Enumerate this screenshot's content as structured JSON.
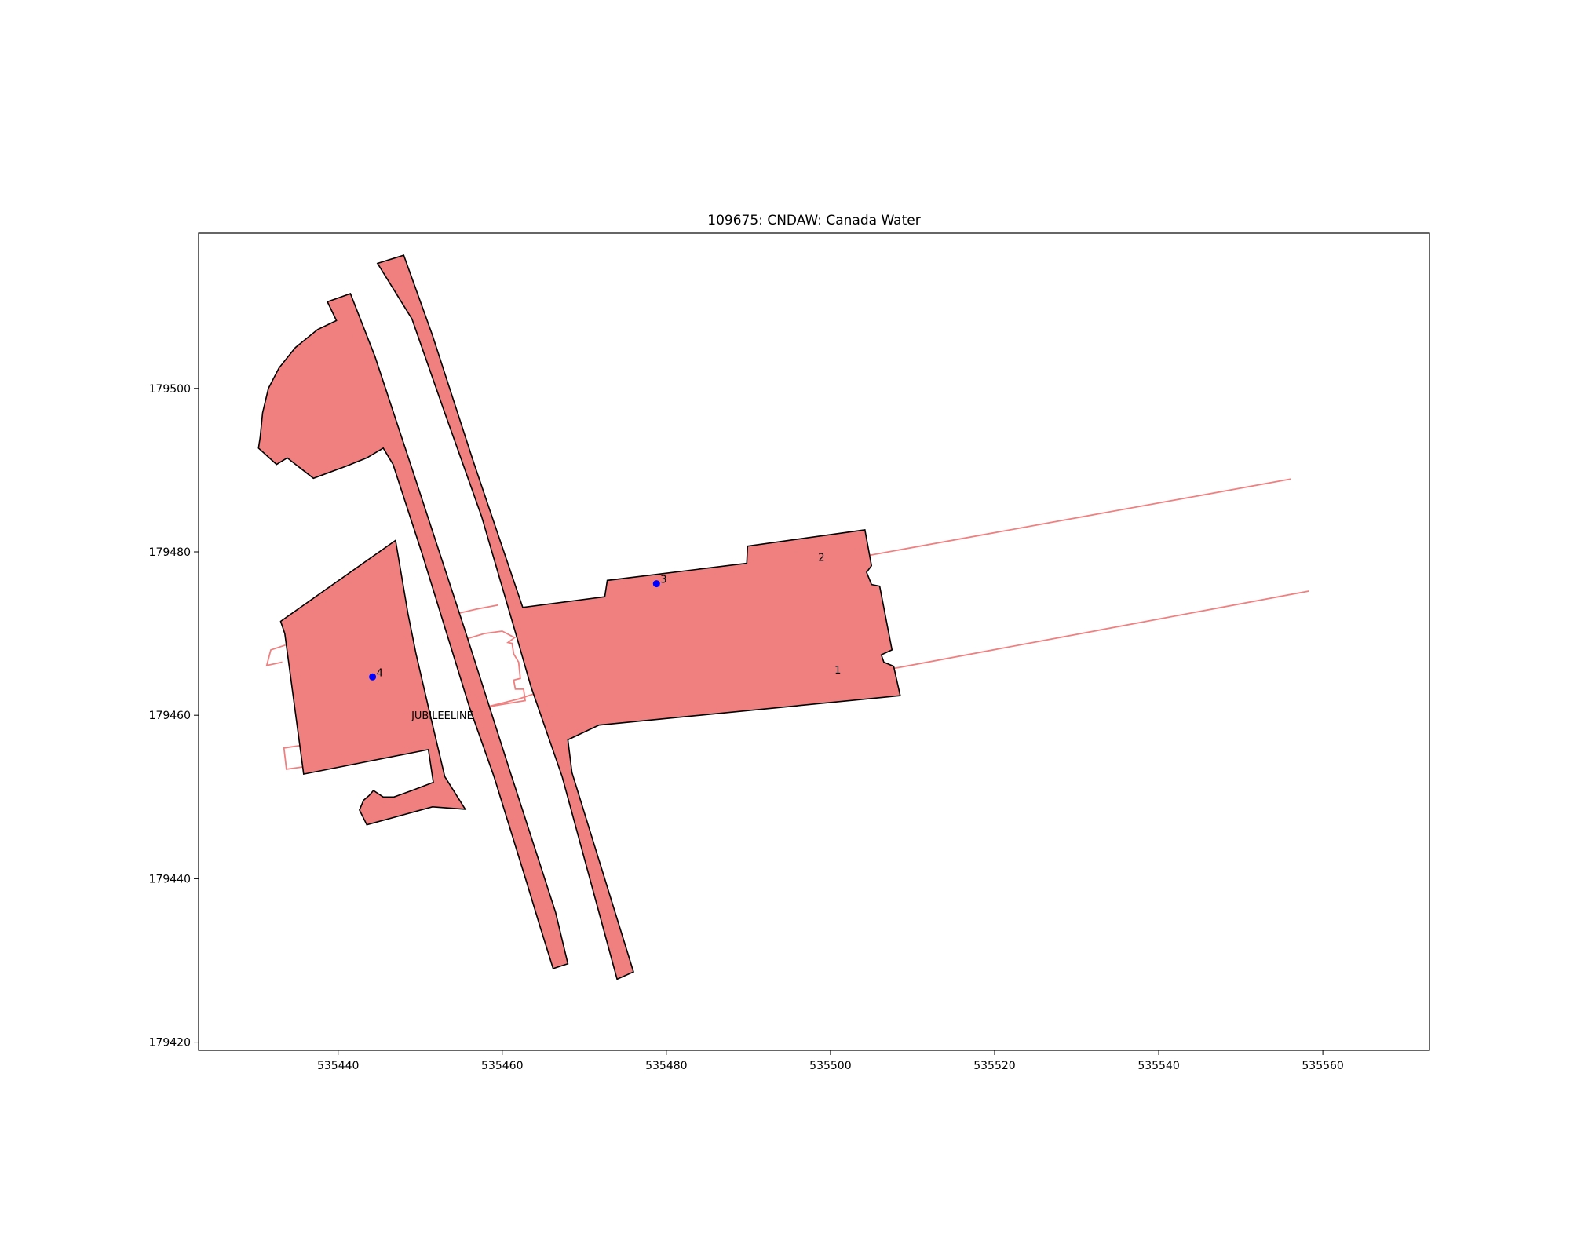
{
  "chart_data": {
    "type": "map",
    "title": "109675: CNDAW: Canada Water",
    "xlim": [
      535423,
      535573
    ],
    "ylim": [
      179419,
      179519
    ],
    "xticks": [
      535440,
      535460,
      535480,
      535500,
      535520,
      535540,
      535560
    ],
    "xtick_labels": [
      "535440",
      "535460",
      "535480",
      "535500",
      "535520",
      "535540",
      "535560"
    ],
    "yticks": [
      179420,
      179440,
      179460,
      179480,
      179500
    ],
    "ytick_labels": [
      "179420",
      "179440",
      "179460",
      "179480",
      "179500"
    ],
    "grid": false,
    "colors": {
      "fill": "#f08080",
      "edge": "#000000",
      "outline": "#f08080",
      "point": "#0000ff"
    },
    "filled_polygons": [
      {
        "id": "west-platform-block",
        "points": [
          [
            535438.7,
            179510.6
          ],
          [
            535441.5,
            179511.6
          ],
          [
            535444.5,
            179503.9
          ],
          [
            535449.1,
            179489.9
          ],
          [
            535455.5,
            179470.3
          ],
          [
            535461.0,
            179453.0
          ],
          [
            535466.5,
            179435.9
          ],
          [
            535468.0,
            179429.6
          ],
          [
            535466.2,
            179429.0
          ],
          [
            535464.5,
            179434.5
          ],
          [
            535463.0,
            179439.5
          ],
          [
            535461.0,
            179446.0
          ],
          [
            535459.0,
            179452.5
          ],
          [
            535456.0,
            179461.0
          ],
          [
            535450.2,
            179479.9
          ],
          [
            535446.7,
            179490.7
          ],
          [
            535445.5,
            179492.7
          ],
          [
            535443.5,
            179491.5
          ],
          [
            535441.0,
            179490.5
          ],
          [
            535437.0,
            179489.0
          ],
          [
            535433.8,
            179491.5
          ],
          [
            535432.5,
            179490.7
          ],
          [
            535430.3,
            179492.7
          ],
          [
            535430.5,
            179494.0
          ],
          [
            535430.8,
            179497.0
          ],
          [
            535431.5,
            179500.0
          ],
          [
            535432.8,
            179502.5
          ],
          [
            535434.8,
            179505.0
          ],
          [
            535437.5,
            179507.2
          ],
          [
            535439.8,
            179508.3
          ]
        ]
      },
      {
        "id": "east-platform-and-concourse",
        "points": [
          [
            535444.8,
            179515.3
          ],
          [
            535448.0,
            179516.3
          ],
          [
            535451.5,
            179506.5
          ],
          [
            535456.5,
            179491.0
          ],
          [
            535462.5,
            179473.2
          ],
          [
            535472.5,
            179474.5
          ],
          [
            535472.8,
            179476.5
          ],
          [
            535489.8,
            179478.6
          ],
          [
            535489.9,
            179480.7
          ],
          [
            535504.2,
            179482.7
          ],
          [
            535505.0,
            179478.3
          ],
          [
            535504.4,
            179477.5
          ],
          [
            535505.0,
            179476.0
          ],
          [
            535506.0,
            179475.8
          ],
          [
            535507.5,
            179468.0
          ],
          [
            535506.2,
            179467.4
          ],
          [
            535506.5,
            179466.5
          ],
          [
            535507.7,
            179466.0
          ],
          [
            535508.5,
            179462.4
          ],
          [
            535471.8,
            179458.8
          ],
          [
            535468.0,
            179457.0
          ],
          [
            535468.5,
            179453.0
          ],
          [
            535476.0,
            179428.6
          ],
          [
            535474.0,
            179427.7
          ],
          [
            535467.3,
            179452.5
          ],
          [
            535463.5,
            179463.5
          ],
          [
            535461.5,
            179470.5
          ],
          [
            535457.5,
            179484.3
          ],
          [
            535453.0,
            179497.0
          ],
          [
            535449.0,
            179508.5
          ]
        ]
      },
      {
        "id": "ticket-hall-block",
        "points": [
          [
            535447.0,
            179481.4
          ],
          [
            535433.0,
            179471.5
          ],
          [
            535433.5,
            179470.0
          ],
          [
            535435.8,
            179452.8
          ],
          [
            535451.0,
            179455.8
          ],
          [
            535451.6,
            179451.8
          ],
          [
            535449.0,
            179450.8
          ],
          [
            535446.8,
            179450.0
          ],
          [
            535445.5,
            179450.0
          ],
          [
            535444.3,
            179450.8
          ],
          [
            535443.8,
            179450.2
          ],
          [
            535443.1,
            179449.6
          ],
          [
            535442.6,
            179448.4
          ],
          [
            535443.5,
            179446.6
          ],
          [
            535451.5,
            179448.8
          ],
          [
            535455.5,
            179448.5
          ],
          [
            535453.0,
            179452.5
          ],
          [
            535451.0,
            179461.0
          ],
          [
            535449.5,
            179467.5
          ],
          [
            535448.5,
            179472.5
          ]
        ]
      }
    ],
    "outlines": [
      {
        "id": "track-line-north",
        "points": [
          [
            535504.3,
            179479.5
          ],
          [
            535556.1,
            179488.9
          ]
        ]
      },
      {
        "id": "track-line-south",
        "points": [
          [
            535507.5,
            179465.7
          ],
          [
            535558.3,
            179475.2
          ]
        ]
      },
      {
        "id": "connector-north",
        "points": [
          [
            535452.6,
            179472.0
          ],
          [
            535456.9,
            179473.0
          ],
          [
            535459.5,
            179473.5
          ]
        ]
      },
      {
        "id": "connector-south",
        "points": [
          [
            535458.0,
            179461.0
          ],
          [
            535462.0,
            179462.0
          ],
          [
            535465.0,
            179463.0
          ]
        ]
      },
      {
        "id": "ticket-hall-annex",
        "points": [
          [
            535455.5,
            179469.3
          ],
          [
            535457.8,
            179470.0
          ],
          [
            535460.0,
            179470.3
          ],
          [
            535461.5,
            179469.5
          ],
          [
            535460.7,
            179468.9
          ],
          [
            535461.2,
            179468.8
          ],
          [
            535461.4,
            179467.5
          ],
          [
            535462.0,
            179466.5
          ],
          [
            535462.2,
            179464.5
          ],
          [
            535461.4,
            179464.3
          ],
          [
            535461.6,
            179463.2
          ],
          [
            535462.6,
            179463.2
          ],
          [
            535462.8,
            179461.8
          ],
          [
            535458.0,
            179461.0
          ]
        ]
      },
      {
        "id": "west-stub-upper",
        "points": [
          [
            535433.6,
            179468.6
          ],
          [
            535431.8,
            179468.0
          ],
          [
            535431.3,
            179466.1
          ],
          [
            535433.2,
            179466.5
          ]
        ]
      },
      {
        "id": "west-stub-lower",
        "points": [
          [
            535435.4,
            179456.3
          ],
          [
            535433.4,
            179456.0
          ],
          [
            535433.7,
            179453.4
          ],
          [
            535435.8,
            179453.7
          ]
        ]
      }
    ],
    "points": [
      {
        "label": "4",
        "x": 535444.2,
        "y": 179464.7,
        "marker": true
      },
      {
        "label": "3",
        "x": 535478.8,
        "y": 179476.1,
        "marker": true
      },
      {
        "label": "2",
        "x": 535498.9,
        "y": 179479.3,
        "marker": false
      },
      {
        "label": "1",
        "x": 535500.9,
        "y": 179465.5,
        "marker": false
      }
    ],
    "annotations": [
      {
        "text": "JUBILEELINE",
        "x": 535452.7,
        "y": 179460.0
      }
    ]
  }
}
